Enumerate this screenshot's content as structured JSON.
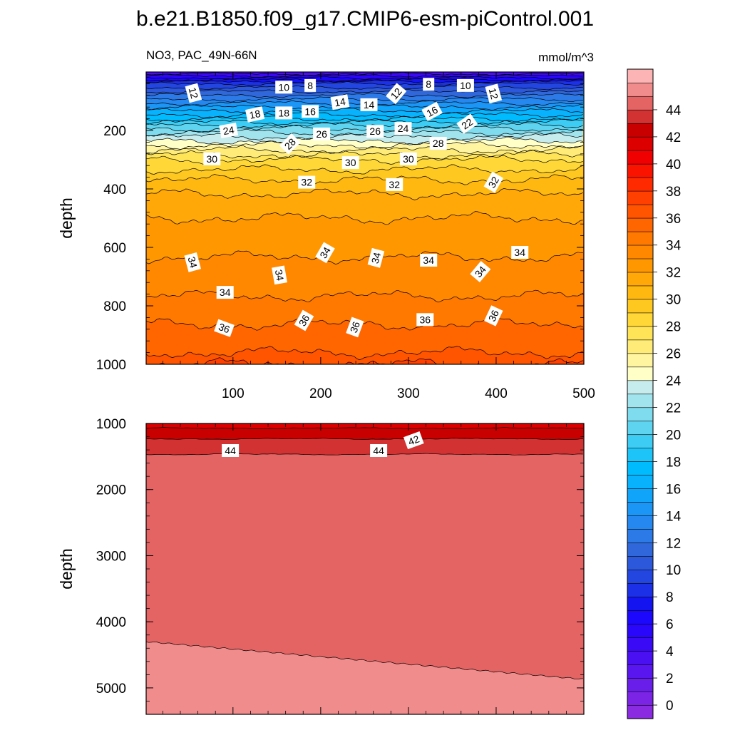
{
  "chart_data": [
    {
      "type": "heatmap",
      "panel": "upper",
      "title": "b.e21.B1850.f09_g17.CMIP6-esm-piControl.001",
      "left_subtitle": "NO3, PAC_49N-66N",
      "right_subtitle": "mmol/m^3",
      "ylabel": "depth",
      "xlabel": "",
      "xlim": [
        1,
        500
      ],
      "ylim": [
        0,
        1000
      ],
      "y_reversed": true,
      "x_ticks": [
        "100",
        "200",
        "300",
        "400",
        "500"
      ],
      "y_ticks": [
        "200",
        "400",
        "600",
        "800",
        "1000"
      ],
      "contour_profile": {
        "depth": [
          0,
          40,
          80,
          120,
          160,
          200,
          250,
          300,
          350,
          400,
          500,
          600,
          700,
          800,
          900,
          1000
        ],
        "value": [
          4,
          10,
          13,
          16,
          19,
          22.5,
          26,
          29,
          30.5,
          31.8,
          33,
          33.8,
          34.4,
          35.3,
          36.4,
          37.4
        ]
      },
      "contour_labels": [
        {
          "text": "12",
          "x": 55,
          "y": 72,
          "rotate": 75
        },
        {
          "text": "10",
          "x": 158,
          "y": 52,
          "rotate": 0
        },
        {
          "text": "8",
          "x": 188,
          "y": 46,
          "rotate": 0
        },
        {
          "text": "18",
          "x": 125,
          "y": 145,
          "rotate": -12
        },
        {
          "text": "18",
          "x": 158,
          "y": 140,
          "rotate": 0
        },
        {
          "text": "16",
          "x": 188,
          "y": 135,
          "rotate": 0
        },
        {
          "text": "14",
          "x": 222,
          "y": 103,
          "rotate": -10
        },
        {
          "text": "14",
          "x": 255,
          "y": 112,
          "rotate": 0
        },
        {
          "text": "12",
          "x": 286,
          "y": 74,
          "rotate": -50
        },
        {
          "text": "8",
          "x": 323,
          "y": 42,
          "rotate": 0
        },
        {
          "text": "10",
          "x": 365,
          "y": 46,
          "rotate": 0
        },
        {
          "text": "12",
          "x": 397,
          "y": 74,
          "rotate": 75
        },
        {
          "text": "16",
          "x": 327,
          "y": 135,
          "rotate": -28
        },
        {
          "text": "22",
          "x": 367,
          "y": 177,
          "rotate": -35
        },
        {
          "text": "24",
          "x": 95,
          "y": 200,
          "rotate": -10
        },
        {
          "text": "26",
          "x": 201,
          "y": 212,
          "rotate": 0
        },
        {
          "text": "26",
          "x": 262,
          "y": 203,
          "rotate": 0
        },
        {
          "text": "24",
          "x": 294,
          "y": 193,
          "rotate": 0
        },
        {
          "text": "28",
          "x": 165,
          "y": 246,
          "rotate": -45
        },
        {
          "text": "28",
          "x": 334,
          "y": 244,
          "rotate": 0
        },
        {
          "text": "30",
          "x": 76,
          "y": 297,
          "rotate": 0
        },
        {
          "text": "30",
          "x": 234,
          "y": 310,
          "rotate": 0
        },
        {
          "text": "30",
          "x": 300,
          "y": 297,
          "rotate": 0
        },
        {
          "text": "32",
          "x": 184,
          "y": 377,
          "rotate": 0
        },
        {
          "text": "32",
          "x": 284,
          "y": 385,
          "rotate": 0
        },
        {
          "text": "32",
          "x": 397,
          "y": 377,
          "rotate": -60
        },
        {
          "text": "34",
          "x": 54,
          "y": 651,
          "rotate": 75
        },
        {
          "text": "34",
          "x": 205,
          "y": 618,
          "rotate": -60
        },
        {
          "text": "34",
          "x": 263,
          "y": 636,
          "rotate": -75
        },
        {
          "text": "34",
          "x": 323,
          "y": 644,
          "rotate": 0
        },
        {
          "text": "34",
          "x": 427,
          "y": 617,
          "rotate": 0
        },
        {
          "text": "34",
          "x": 382,
          "y": 683,
          "rotate": -50
        },
        {
          "text": "34",
          "x": 153,
          "y": 695,
          "rotate": 80
        },
        {
          "text": "34",
          "x": 91,
          "y": 754,
          "rotate": 0
        },
        {
          "text": "36",
          "x": 90,
          "y": 876,
          "rotate": 20
        },
        {
          "text": "36",
          "x": 181,
          "y": 850,
          "rotate": -60
        },
        {
          "text": "36",
          "x": 239,
          "y": 873,
          "rotate": -70
        },
        {
          "text": "36",
          "x": 319,
          "y": 847,
          "rotate": 0
        },
        {
          "text": "36",
          "x": 397,
          "y": 834,
          "rotate": -65
        }
      ]
    },
    {
      "type": "heatmap",
      "panel": "lower",
      "ylabel": "depth",
      "xlim": [
        1,
        500
      ],
      "ylim": [
        1000,
        5400
      ],
      "y_reversed": true,
      "y_ticks": [
        "1000",
        "2000",
        "3000",
        "4000",
        "5000"
      ],
      "contour_profile": {
        "depth": [
          1000,
          1100,
          1200,
          1300,
          1400,
          1500,
          2000,
          4300,
          5400
        ],
        "value": [
          42.5,
          43.2,
          43.8,
          44.4,
          44.8,
          45.1,
          45.5,
          45.5,
          46.5
        ]
      },
      "boundary_46": {
        "x": [
          1,
          500
        ],
        "depth": [
          4300,
          4870
        ]
      },
      "contour_labels": [
        {
          "text": "44",
          "x": 97,
          "depth": 1410,
          "rotate": 0
        },
        {
          "text": "44",
          "x": 266,
          "depth": 1410,
          "rotate": 0
        },
        {
          "text": "42",
          "x": 306,
          "depth": 1255,
          "rotate": -20
        }
      ]
    }
  ],
  "colorbar": {
    "levels_min": 0,
    "levels_max": 46,
    "step": 1,
    "tick_labels": [
      "0",
      "2",
      "4",
      "6",
      "8",
      "10",
      "12",
      "14",
      "16",
      "18",
      "20",
      "22",
      "24",
      "26",
      "28",
      "30",
      "32",
      "34",
      "36",
      "38",
      "40",
      "42",
      "44"
    ],
    "colors": [
      "#8a2be2",
      "#7b24e6",
      "#6a1eea",
      "#5a16ee",
      "#4a10f2",
      "#3a0af6",
      "#2a06fa",
      "#1c08fd",
      "#1414f0",
      "#1c30e8",
      "#2446e0",
      "#2c58dc",
      "#3068dc",
      "#2c7ae8",
      "#2488f0",
      "#1c96f6",
      "#10a4fa",
      "#08b2fc",
      "#00bcff",
      "#1cc4f8",
      "#3cccf4",
      "#5ed4f0",
      "#7fdcee",
      "#a2e4ee",
      "#c6ecee",
      "#ffffc8",
      "#fff4a0",
      "#ffec78",
      "#ffe458",
      "#ffd838",
      "#ffc820",
      "#ffb810",
      "#ffa808",
      "#ff9800",
      "#ff8800",
      "#ff7800",
      "#ff6600",
      "#ff5400",
      "#ff4000",
      "#ff2a00",
      "#fa1400",
      "#f00000",
      "#dc0000",
      "#c80000",
      "#d23232",
      "#e46464",
      "#f08c8c",
      "#fcb4b4"
    ]
  }
}
